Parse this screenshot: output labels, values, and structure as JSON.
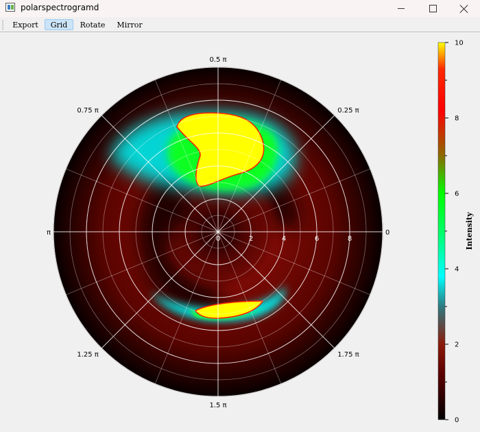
{
  "window": {
    "title": "polarspectrogramd"
  },
  "toolbar": {
    "buttons": [
      {
        "label": "Export",
        "active": false
      },
      {
        "label": "Grid",
        "active": true
      },
      {
        "label": "Rotate",
        "active": false
      },
      {
        "label": "Mirror",
        "active": false
      }
    ]
  },
  "chart_data": {
    "type": "heatmap",
    "projection": "polar",
    "grid": true,
    "angle_labels": [
      {
        "angle": "0",
        "label": "0"
      },
      {
        "angle": "0.25π",
        "label": "0.25 π"
      },
      {
        "angle": "0.5π",
        "label": "0.5 π"
      },
      {
        "angle": "0.75π",
        "label": "0.75 π"
      },
      {
        "angle": "π",
        "label": "π"
      },
      {
        "angle": "1.25π",
        "label": "1.25 π"
      },
      {
        "angle": "1.5π",
        "label": "1.5 π"
      },
      {
        "angle": "1.75π",
        "label": "1.75 π"
      }
    ],
    "radial_ticks": [
      0,
      2,
      4,
      6,
      8
    ],
    "radial_range": [
      0,
      10
    ],
    "colorbar": {
      "label": "Intensity",
      "range": [
        0,
        10
      ],
      "tick_labels": [
        "0",
        "2",
        "4",
        "6",
        "8",
        "10"
      ],
      "colormap": [
        "#000000",
        "#8b0000",
        "#00ffff",
        "#00ff00",
        "#ff0000",
        "#ffff00"
      ]
    },
    "features": [
      {
        "name": "upper lobe",
        "peak_intensity": 10
      },
      {
        "name": "lower arc",
        "peak_intensity": 10
      },
      {
        "name": "dark spiral",
        "peak_intensity": 0
      }
    ]
  }
}
